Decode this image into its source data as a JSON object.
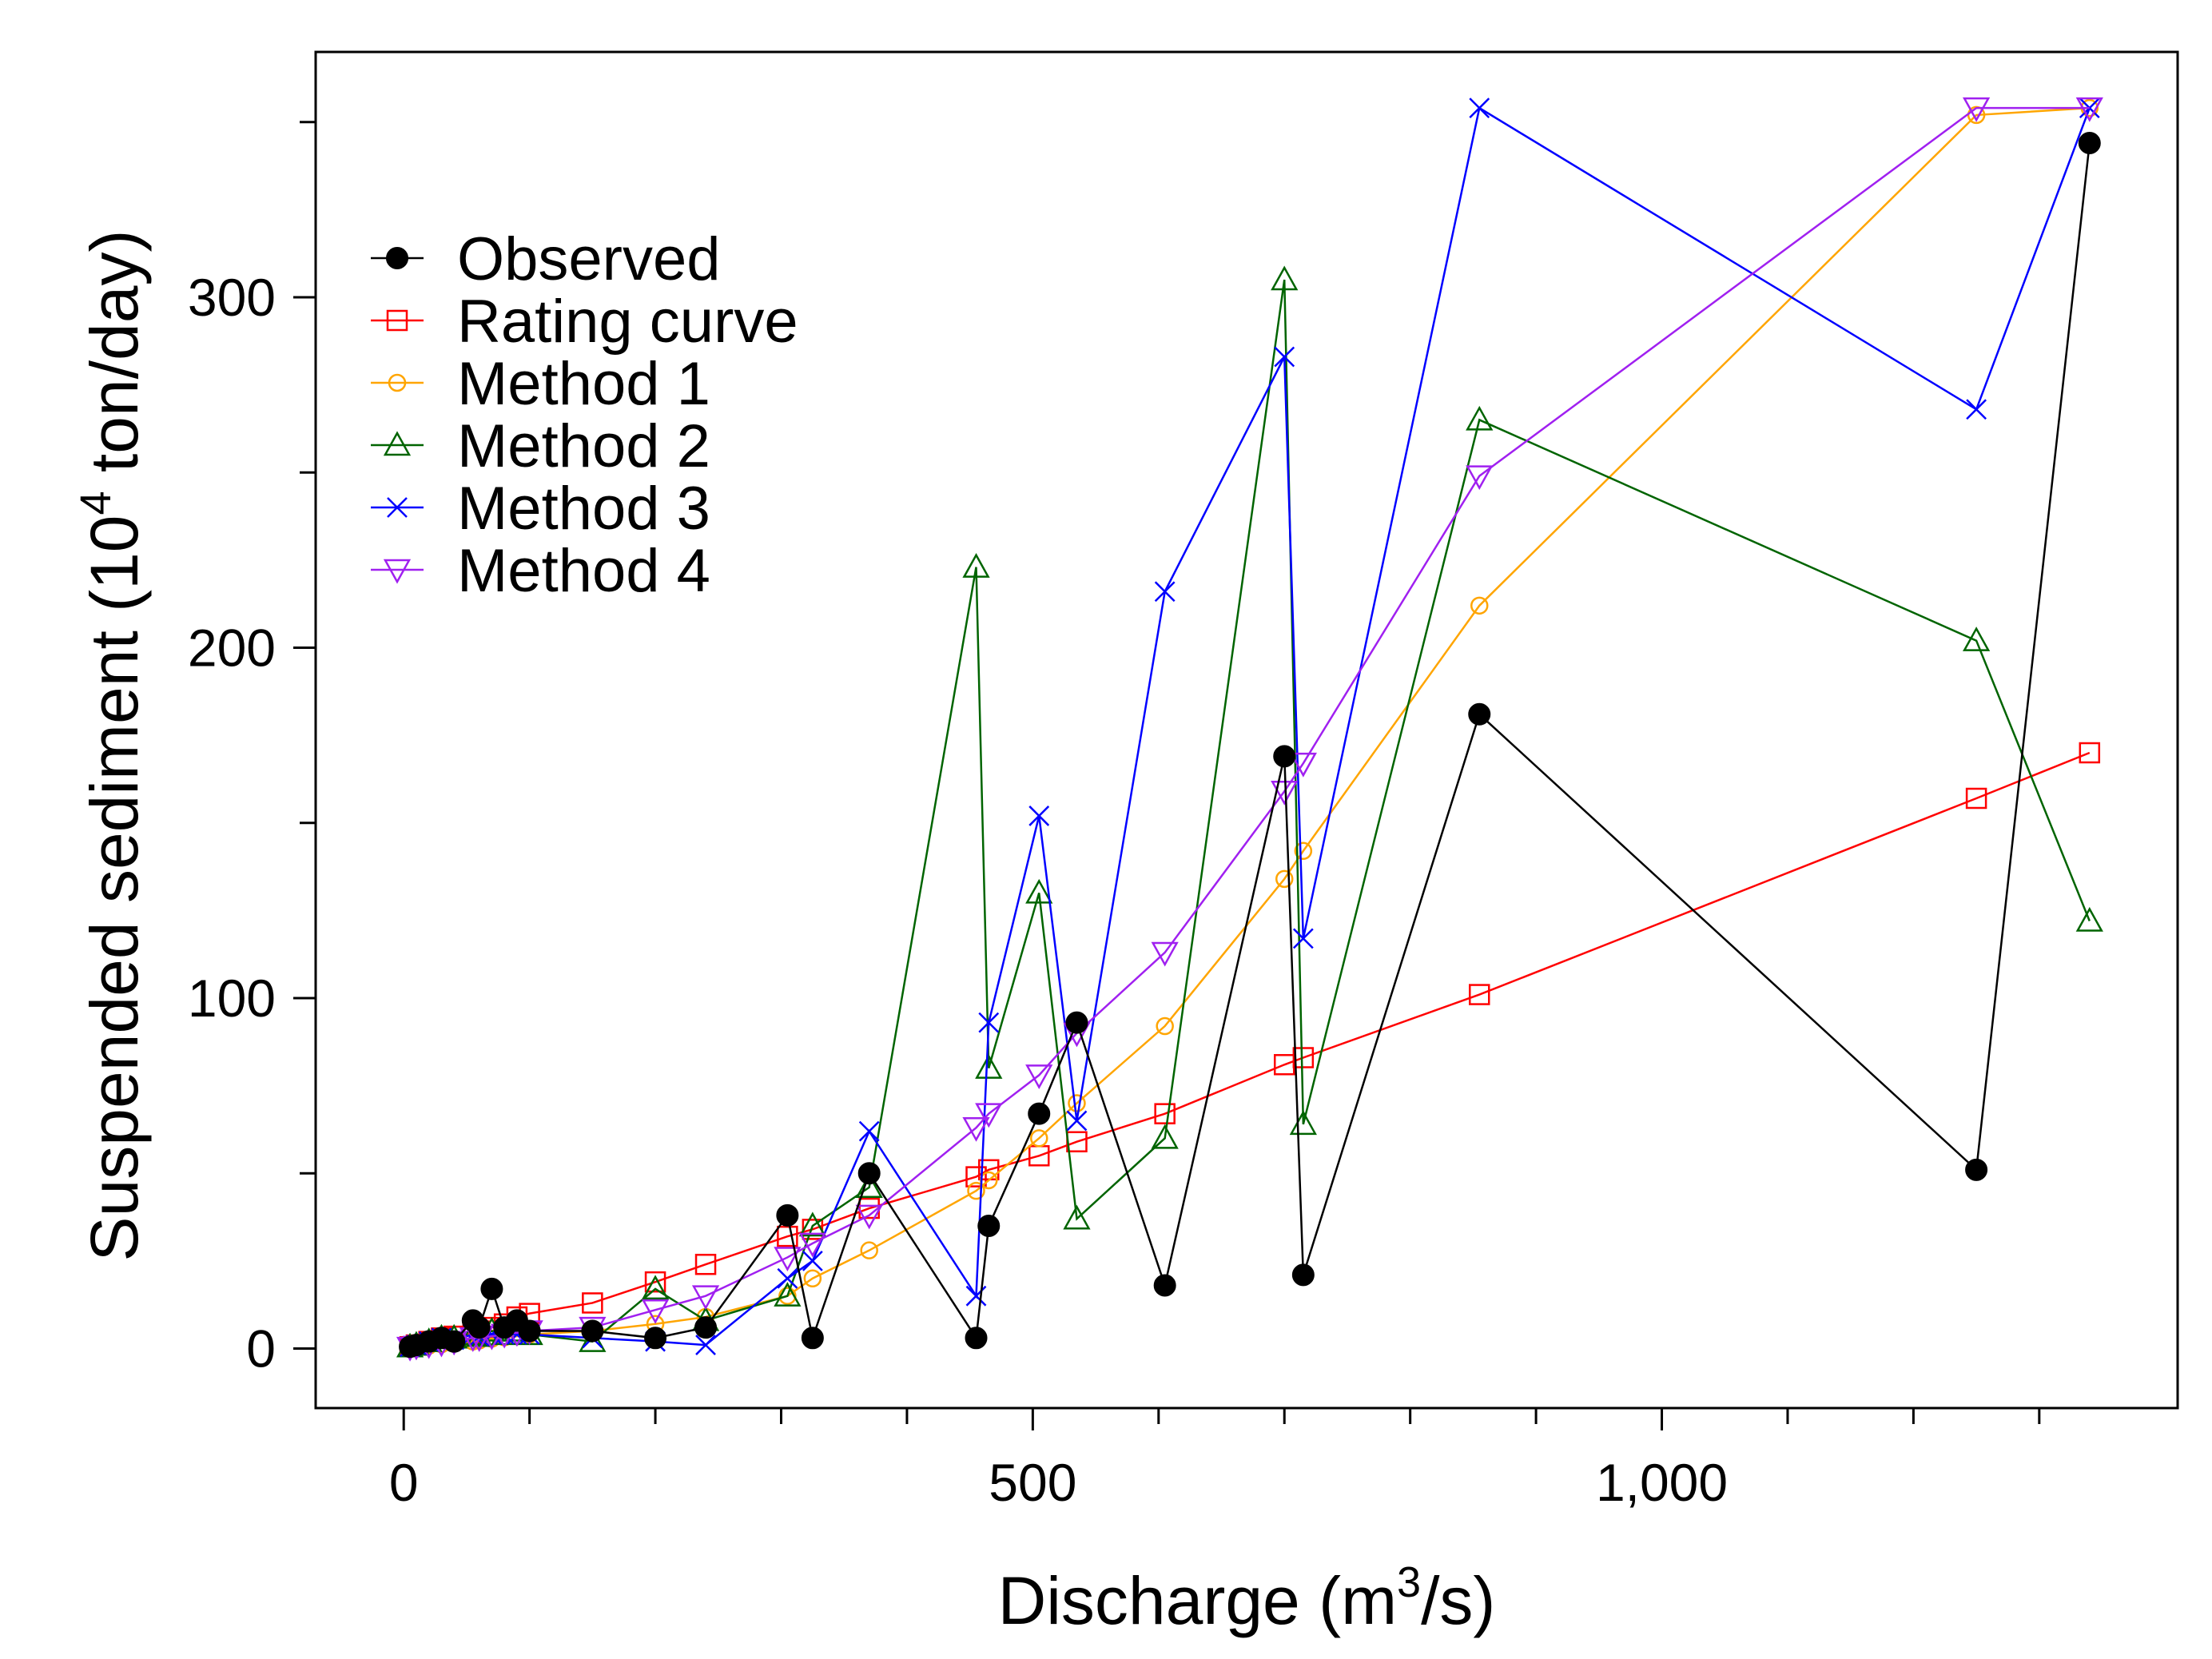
{
  "chart_data": {
    "type": "line",
    "title": "",
    "xlabel": "Discharge (m³/s)",
    "xlabel_parts": {
      "main": "Discharge (m",
      "sup": "3",
      "tail": "/s)"
    },
    "ylabel": "Suspended sediment (10⁴ ton/day)",
    "ylabel_parts": {
      "main": "Suspended sediment (10",
      "sup": "4",
      "tail": " ton/day)"
    },
    "xlim": [
      -70,
      1410
    ],
    "ylim": [
      -17,
      370
    ],
    "x_ticks_major": [
      0,
      500,
      1000
    ],
    "x_tick_labels": [
      "0",
      "500",
      "1,000"
    ],
    "x_ticks_minor": [
      100,
      200,
      300,
      400,
      600,
      700,
      800,
      900,
      1100,
      1200,
      1300
    ],
    "y_ticks_major": [
      0,
      100,
      200,
      300
    ],
    "y_tick_labels": [
      "0",
      "100",
      "200",
      "300"
    ],
    "y_ticks_minor": [
      50,
      150,
      250,
      350
    ],
    "grid": false,
    "legend_position": "top-left",
    "x": [
      5,
      10,
      20,
      30,
      40,
      55,
      60,
      70,
      80,
      90,
      100,
      150,
      200,
      240,
      305,
      325,
      370,
      455,
      465,
      505,
      535,
      605,
      700,
      715,
      855,
      1250,
      1340
    ],
    "series": [
      {
        "name": "Observed",
        "color": "#000000",
        "marker": "filled-circle",
        "values": [
          0.5,
          1,
          2,
          3,
          2,
          8,
          6,
          17,
          6,
          8,
          5,
          5,
          3,
          6,
          38,
          3,
          50,
          3,
          35,
          67,
          93,
          18,
          169,
          21,
          181,
          51,
          344
        ]
      },
      {
        "name": "Rating curve",
        "color": "#ff0000",
        "marker": "open-square",
        "values": [
          0.5,
          1,
          2,
          3,
          3.5,
          4.5,
          5,
          6,
          7,
          9,
          10,
          13,
          19,
          24,
          32,
          34,
          40,
          49,
          51,
          55,
          59,
          67,
          81,
          83,
          101,
          157,
          170
        ]
      },
      {
        "name": "Method 1",
        "color": "#ffa500",
        "marker": "open-circle",
        "values": [
          0.2,
          0.4,
          0.8,
          1.2,
          1.5,
          2,
          2.3,
          2.8,
          3.2,
          3.5,
          4,
          5,
          7,
          9,
          15,
          20,
          28,
          45,
          48,
          60,
          70,
          92,
          134,
          142,
          212,
          352,
          354
        ]
      },
      {
        "name": "Method 2",
        "color": "#006400",
        "marker": "open-triangle",
        "values": [
          0.5,
          1,
          2,
          3,
          3,
          4,
          3.5,
          5,
          4,
          5,
          4,
          2,
          17,
          8,
          15,
          35,
          46,
          223,
          80,
          130,
          37,
          60,
          305,
          64,
          265,
          202,
          122
        ]
      },
      {
        "name": "Method 3",
        "color": "#0000ff",
        "marker": "cross",
        "values": [
          0.5,
          1,
          2,
          3,
          2.5,
          4,
          3.5,
          4,
          4,
          4,
          4,
          3,
          2,
          1,
          20,
          25,
          62,
          15,
          93,
          152,
          65,
          216,
          283,
          117,
          354,
          268,
          354
        ]
      },
      {
        "name": "Method 4",
        "color": "#a020f0",
        "marker": "open-triangle-down",
        "values": [
          0.3,
          0.6,
          1,
          1.5,
          2,
          3,
          3,
          3.5,
          4,
          4.5,
          5,
          6,
          11,
          15,
          26,
          30,
          38,
          63,
          67,
          78,
          90,
          113,
          159,
          167,
          249,
          354,
          354
        ]
      }
    ]
  }
}
